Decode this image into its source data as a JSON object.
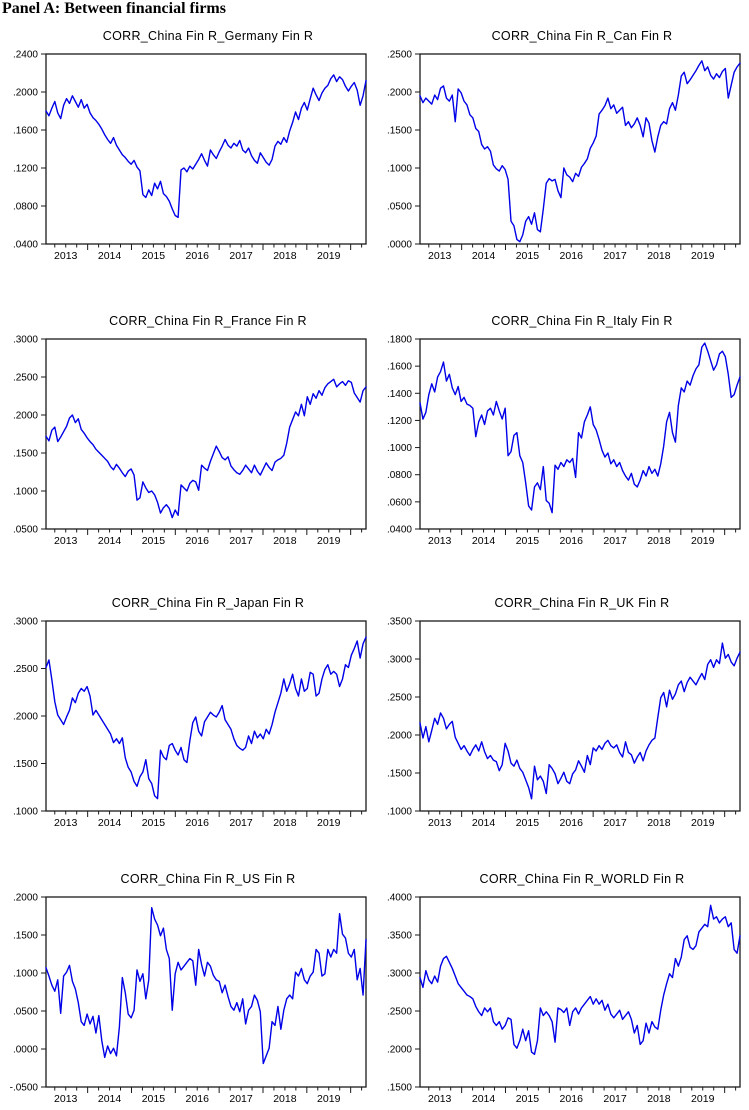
{
  "page": {
    "heading": "Panel A: Between financial firms"
  },
  "axis": {
    "x_start": 2012.55,
    "x_end": 2019.85,
    "x_year_ticks": [
      2013,
      2014,
      2015,
      2016,
      2017,
      2018,
      2019
    ],
    "x_year_labels": [
      "2013",
      "2014",
      "2015",
      "2016",
      "2017",
      "2018",
      "2019"
    ],
    "line_color": "#0000e8",
    "axis_color": "#1a1a1a",
    "text_color": "#000000"
  },
  "chart_data": [
    {
      "type": "line",
      "title": "CORR_China Fin R_Germany Fin R",
      "xlabel": "",
      "ylabel": "",
      "ylim": [
        0.04,
        0.24
      ],
      "ytick_step": 0.04,
      "ytick_labels": [
        ".0400",
        ".0800",
        ".1200",
        ".1600",
        ".2000",
        ".2400"
      ],
      "x_range": [
        2012.55,
        2019.85
      ],
      "values": [
        0.18,
        0.175,
        0.183,
        0.19,
        0.178,
        0.172,
        0.186,
        0.193,
        0.188,
        0.196,
        0.19,
        0.184,
        0.192,
        0.183,
        0.187,
        0.178,
        0.173,
        0.17,
        0.166,
        0.161,
        0.155,
        0.15,
        0.146,
        0.152,
        0.144,
        0.139,
        0.134,
        0.131,
        0.127,
        0.124,
        0.128,
        0.121,
        0.117,
        0.092,
        0.089,
        0.097,
        0.091,
        0.104,
        0.098,
        0.106,
        0.093,
        0.09,
        0.085,
        0.077,
        0.07,
        0.068,
        0.118,
        0.12,
        0.116,
        0.122,
        0.119,
        0.124,
        0.129,
        0.135,
        0.128,
        0.122,
        0.139,
        0.134,
        0.13,
        0.137,
        0.143,
        0.15,
        0.144,
        0.141,
        0.146,
        0.143,
        0.149,
        0.139,
        0.136,
        0.141,
        0.133,
        0.128,
        0.125,
        0.136,
        0.131,
        0.126,
        0.123,
        0.129,
        0.143,
        0.148,
        0.145,
        0.152,
        0.147,
        0.159,
        0.168,
        0.179,
        0.171,
        0.183,
        0.189,
        0.181,
        0.193,
        0.204,
        0.197,
        0.191,
        0.199,
        0.204,
        0.207,
        0.214,
        0.218,
        0.211,
        0.216,
        0.213,
        0.206,
        0.201,
        0.206,
        0.21,
        0.202,
        0.186,
        0.196,
        0.212
      ]
    },
    {
      "type": "line",
      "title": "CORR_China Fin R_Can Fin R",
      "xlabel": "",
      "ylabel": "",
      "ylim": [
        0.0,
        0.25
      ],
      "ytick_step": 0.05,
      "ytick_labels": [
        ".0000",
        ".0500",
        ".1000",
        ".1500",
        ".2000",
        ".2500"
      ],
      "x_range": [
        2012.55,
        2019.85
      ],
      "values": [
        0.195,
        0.186,
        0.192,
        0.188,
        0.184,
        0.196,
        0.19,
        0.205,
        0.208,
        0.192,
        0.188,
        0.196,
        0.161,
        0.204,
        0.199,
        0.188,
        0.183,
        0.17,
        0.166,
        0.152,
        0.148,
        0.131,
        0.125,
        0.128,
        0.122,
        0.104,
        0.099,
        0.096,
        0.103,
        0.098,
        0.085,
        0.03,
        0.024,
        0.006,
        0.003,
        0.012,
        0.03,
        0.036,
        0.026,
        0.041,
        0.019,
        0.016,
        0.046,
        0.08,
        0.086,
        0.083,
        0.085,
        0.07,
        0.061,
        0.1,
        0.091,
        0.088,
        0.082,
        0.093,
        0.089,
        0.101,
        0.106,
        0.112,
        0.126,
        0.133,
        0.142,
        0.171,
        0.176,
        0.182,
        0.192,
        0.178,
        0.183,
        0.172,
        0.176,
        0.18,
        0.156,
        0.161,
        0.153,
        0.158,
        0.166,
        0.156,
        0.141,
        0.166,
        0.159,
        0.136,
        0.121,
        0.141,
        0.156,
        0.161,
        0.158,
        0.178,
        0.186,
        0.176,
        0.196,
        0.221,
        0.226,
        0.211,
        0.216,
        0.222,
        0.228,
        0.235,
        0.241,
        0.228,
        0.233,
        0.222,
        0.217,
        0.224,
        0.219,
        0.227,
        0.231,
        0.192,
        0.209,
        0.226,
        0.233,
        0.238
      ]
    },
    {
      "type": "line",
      "title": "CORR_China Fin R_France Fin R",
      "xlabel": "",
      "ylabel": "",
      "ylim": [
        0.05,
        0.3
      ],
      "ytick_step": 0.05,
      "ytick_labels": [
        ".0500",
        ".1000",
        ".1500",
        ".2000",
        ".2500",
        ".3000"
      ],
      "x_range": [
        2012.55,
        2019.85
      ],
      "values": [
        0.172,
        0.166,
        0.18,
        0.184,
        0.165,
        0.171,
        0.178,
        0.185,
        0.196,
        0.2,
        0.19,
        0.195,
        0.181,
        0.176,
        0.17,
        0.165,
        0.161,
        0.155,
        0.151,
        0.147,
        0.143,
        0.139,
        0.132,
        0.128,
        0.135,
        0.13,
        0.124,
        0.119,
        0.126,
        0.129,
        0.121,
        0.088,
        0.091,
        0.112,
        0.104,
        0.098,
        0.1,
        0.095,
        0.085,
        0.071,
        0.078,
        0.082,
        0.077,
        0.065,
        0.075,
        0.068,
        0.108,
        0.104,
        0.1,
        0.11,
        0.114,
        0.112,
        0.101,
        0.134,
        0.13,
        0.127,
        0.139,
        0.149,
        0.159,
        0.152,
        0.144,
        0.141,
        0.145,
        0.133,
        0.128,
        0.124,
        0.122,
        0.127,
        0.134,
        0.129,
        0.124,
        0.134,
        0.126,
        0.121,
        0.129,
        0.137,
        0.131,
        0.127,
        0.138,
        0.141,
        0.143,
        0.147,
        0.163,
        0.184,
        0.194,
        0.204,
        0.199,
        0.214,
        0.199,
        0.224,
        0.214,
        0.228,
        0.222,
        0.232,
        0.226,
        0.236,
        0.241,
        0.244,
        0.247,
        0.237,
        0.241,
        0.244,
        0.239,
        0.245,
        0.243,
        0.229,
        0.223,
        0.217,
        0.232,
        0.237
      ]
    },
    {
      "type": "line",
      "title": "CORR_China Fin R_Italy Fin R",
      "xlabel": "",
      "ylabel": "",
      "ylim": [
        0.04,
        0.18
      ],
      "ytick_step": 0.02,
      "ytick_labels": [
        ".0400",
        ".0600",
        ".0800",
        ".1000",
        ".1200",
        ".1400",
        ".1600",
        ".1800"
      ],
      "x_range": [
        2012.55,
        2019.85
      ],
      "values": [
        0.133,
        0.121,
        0.126,
        0.139,
        0.147,
        0.141,
        0.152,
        0.156,
        0.163,
        0.149,
        0.154,
        0.144,
        0.139,
        0.145,
        0.134,
        0.137,
        0.132,
        0.131,
        0.129,
        0.108,
        0.119,
        0.124,
        0.117,
        0.127,
        0.129,
        0.124,
        0.134,
        0.127,
        0.121,
        0.129,
        0.094,
        0.097,
        0.109,
        0.111,
        0.094,
        0.089,
        0.074,
        0.057,
        0.054,
        0.071,
        0.074,
        0.069,
        0.086,
        0.061,
        0.059,
        0.052,
        0.087,
        0.084,
        0.089,
        0.086,
        0.091,
        0.089,
        0.092,
        0.078,
        0.111,
        0.107,
        0.119,
        0.124,
        0.13,
        0.117,
        0.113,
        0.106,
        0.098,
        0.093,
        0.096,
        0.088,
        0.091,
        0.086,
        0.089,
        0.083,
        0.079,
        0.076,
        0.081,
        0.073,
        0.071,
        0.076,
        0.083,
        0.079,
        0.086,
        0.081,
        0.084,
        0.079,
        0.088,
        0.101,
        0.119,
        0.126,
        0.111,
        0.104,
        0.131,
        0.144,
        0.141,
        0.149,
        0.146,
        0.153,
        0.158,
        0.161,
        0.174,
        0.177,
        0.171,
        0.164,
        0.157,
        0.161,
        0.169,
        0.171,
        0.167,
        0.154,
        0.137,
        0.139,
        0.146,
        0.152
      ]
    },
    {
      "type": "line",
      "title": "CORR_China Fin R_Japan Fin R",
      "xlabel": "",
      "ylabel": "",
      "ylim": [
        0.1,
        0.3
      ],
      "ytick_step": 0.05,
      "ytick_labels": [
        ".1000",
        ".1500",
        ".2000",
        ".2500",
        ".3000"
      ],
      "x_range": [
        2012.55,
        2019.85
      ],
      "values": [
        0.251,
        0.259,
        0.238,
        0.215,
        0.201,
        0.196,
        0.191,
        0.199,
        0.206,
        0.219,
        0.214,
        0.224,
        0.229,
        0.226,
        0.231,
        0.221,
        0.201,
        0.206,
        0.201,
        0.196,
        0.191,
        0.186,
        0.181,
        0.172,
        0.176,
        0.171,
        0.177,
        0.156,
        0.146,
        0.141,
        0.131,
        0.126,
        0.136,
        0.141,
        0.154,
        0.134,
        0.129,
        0.116,
        0.113,
        0.164,
        0.157,
        0.154,
        0.169,
        0.171,
        0.164,
        0.159,
        0.167,
        0.154,
        0.151,
        0.174,
        0.193,
        0.199,
        0.184,
        0.179,
        0.194,
        0.199,
        0.204,
        0.201,
        0.199,
        0.204,
        0.211,
        0.196,
        0.191,
        0.186,
        0.176,
        0.169,
        0.166,
        0.164,
        0.167,
        0.179,
        0.171,
        0.184,
        0.177,
        0.181,
        0.176,
        0.186,
        0.181,
        0.191,
        0.204,
        0.214,
        0.224,
        0.239,
        0.226,
        0.234,
        0.244,
        0.229,
        0.221,
        0.239,
        0.226,
        0.229,
        0.246,
        0.244,
        0.221,
        0.224,
        0.239,
        0.249,
        0.254,
        0.244,
        0.247,
        0.244,
        0.231,
        0.239,
        0.254,
        0.251,
        0.264,
        0.271,
        0.279,
        0.261,
        0.276,
        0.283
      ]
    },
    {
      "type": "line",
      "title": "CORR_China Fin R_UK Fin R",
      "xlabel": "",
      "ylabel": "",
      "ylim": [
        0.1,
        0.35
      ],
      "ytick_step": 0.05,
      "ytick_labels": [
        ".1000",
        ".1500",
        ".2000",
        ".2500",
        ".3000",
        ".3500"
      ],
      "x_range": [
        2012.55,
        2019.85
      ],
      "values": [
        0.216,
        0.196,
        0.211,
        0.191,
        0.206,
        0.222,
        0.214,
        0.229,
        0.222,
        0.208,
        0.214,
        0.218,
        0.197,
        0.189,
        0.181,
        0.186,
        0.179,
        0.173,
        0.181,
        0.187,
        0.179,
        0.191,
        0.178,
        0.169,
        0.173,
        0.167,
        0.165,
        0.153,
        0.161,
        0.189,
        0.179,
        0.163,
        0.159,
        0.167,
        0.156,
        0.151,
        0.141,
        0.131,
        0.116,
        0.159,
        0.141,
        0.146,
        0.139,
        0.123,
        0.161,
        0.156,
        0.149,
        0.136,
        0.143,
        0.151,
        0.139,
        0.136,
        0.149,
        0.154,
        0.166,
        0.159,
        0.151,
        0.173,
        0.161,
        0.183,
        0.179,
        0.186,
        0.181,
        0.189,
        0.193,
        0.186,
        0.183,
        0.187,
        0.177,
        0.171,
        0.191,
        0.177,
        0.174,
        0.163,
        0.171,
        0.177,
        0.166,
        0.179,
        0.187,
        0.193,
        0.196,
        0.223,
        0.249,
        0.256,
        0.237,
        0.259,
        0.247,
        0.254,
        0.266,
        0.271,
        0.257,
        0.269,
        0.276,
        0.271,
        0.266,
        0.274,
        0.281,
        0.273,
        0.293,
        0.299,
        0.289,
        0.299,
        0.294,
        0.321,
        0.301,
        0.306,
        0.296,
        0.291,
        0.301,
        0.309
      ]
    },
    {
      "type": "line",
      "title": "CORR_China Fin R_US Fin R",
      "xlabel": "",
      "ylabel": "",
      "ylim": [
        -0.05,
        0.2
      ],
      "ytick_step": 0.05,
      "ytick_labels": [
        "-.0500",
        ".0000",
        ".0500",
        ".1000",
        ".1500",
        ".2000"
      ],
      "x_range": [
        2012.55,
        2019.85
      ],
      "values": [
        0.107,
        0.096,
        0.084,
        0.076,
        0.091,
        0.047,
        0.096,
        0.101,
        0.11,
        0.089,
        0.079,
        0.061,
        0.036,
        0.031,
        0.046,
        0.033,
        0.043,
        0.021,
        0.044,
        0.011,
        -0.011,
        0.004,
        -0.006,
        0.001,
        -0.009,
        0.029,
        0.094,
        0.074,
        0.046,
        0.041,
        0.051,
        0.104,
        0.089,
        0.099,
        0.066,
        0.091,
        0.186,
        0.171,
        0.163,
        0.149,
        0.159,
        0.131,
        0.119,
        0.051,
        0.099,
        0.114,
        0.104,
        0.109,
        0.114,
        0.119,
        0.116,
        0.084,
        0.131,
        0.111,
        0.096,
        0.114,
        0.109,
        0.097,
        0.091,
        0.089,
        0.074,
        0.084,
        0.069,
        0.056,
        0.051,
        0.061,
        0.049,
        0.066,
        0.033,
        0.051,
        0.056,
        0.071,
        0.064,
        0.049,
        -0.019,
        -0.009,
        0.001,
        0.036,
        0.031,
        0.056,
        0.026,
        0.051,
        0.066,
        0.071,
        0.066,
        0.101,
        0.096,
        0.106,
        0.091,
        0.086,
        0.096,
        0.101,
        0.131,
        0.126,
        0.096,
        0.099,
        0.131,
        0.121,
        0.131,
        0.126,
        0.178,
        0.151,
        0.146,
        0.126,
        0.121,
        0.131,
        0.091,
        0.106,
        0.071,
        0.144
      ]
    },
    {
      "type": "line",
      "title": "CORR_China Fin R_WORLD Fin R",
      "xlabel": "",
      "ylabel": "",
      "ylim": [
        0.15,
        0.4
      ],
      "ytick_step": 0.05,
      "ytick_labels": [
        ".1500",
        ".2000",
        ".2500",
        ".3000",
        ".3500",
        ".4000"
      ],
      "x_range": [
        2012.55,
        2019.85
      ],
      "values": [
        0.294,
        0.281,
        0.303,
        0.291,
        0.286,
        0.296,
        0.288,
        0.309,
        0.319,
        0.322,
        0.314,
        0.306,
        0.296,
        0.286,
        0.281,
        0.276,
        0.271,
        0.269,
        0.266,
        0.256,
        0.249,
        0.244,
        0.254,
        0.249,
        0.254,
        0.236,
        0.231,
        0.236,
        0.226,
        0.231,
        0.241,
        0.239,
        0.206,
        0.201,
        0.211,
        0.226,
        0.211,
        0.224,
        0.196,
        0.193,
        0.211,
        0.254,
        0.244,
        0.249,
        0.244,
        0.236,
        0.209,
        0.254,
        0.252,
        0.248,
        0.254,
        0.231,
        0.249,
        0.254,
        0.246,
        0.254,
        0.259,
        0.264,
        0.269,
        0.259,
        0.266,
        0.259,
        0.264,
        0.251,
        0.259,
        0.246,
        0.241,
        0.246,
        0.251,
        0.239,
        0.244,
        0.249,
        0.239,
        0.221,
        0.231,
        0.206,
        0.211,
        0.234,
        0.221,
        0.236,
        0.229,
        0.226,
        0.251,
        0.271,
        0.286,
        0.299,
        0.294,
        0.319,
        0.309,
        0.321,
        0.344,
        0.349,
        0.334,
        0.331,
        0.336,
        0.354,
        0.359,
        0.364,
        0.361,
        0.389,
        0.371,
        0.374,
        0.366,
        0.371,
        0.374,
        0.361,
        0.366,
        0.331,
        0.326,
        0.349
      ]
    }
  ]
}
